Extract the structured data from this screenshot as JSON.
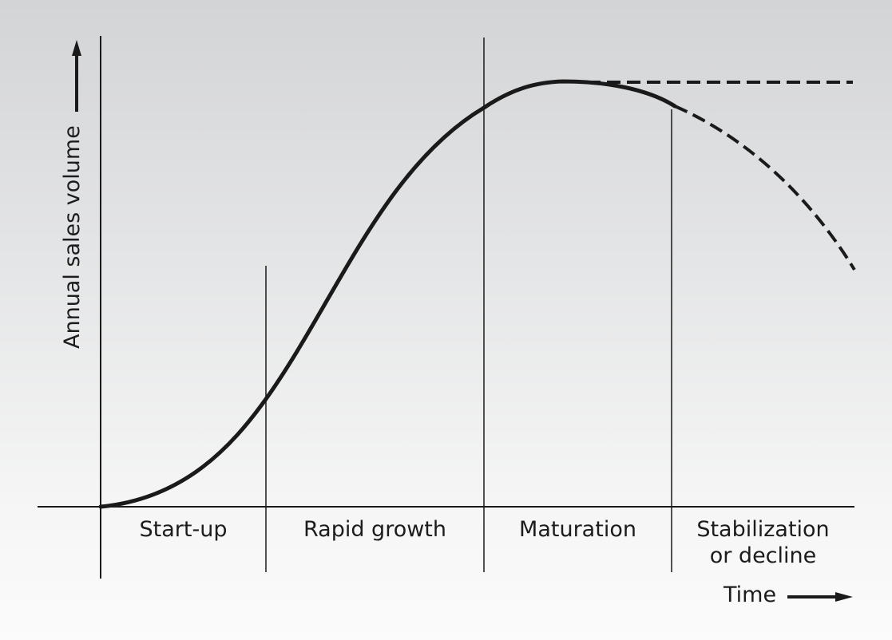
{
  "y_axis": {
    "label": "Annual sales volume"
  },
  "x_axis": {
    "label": "Time"
  },
  "stages": [
    {
      "label": "Start-up"
    },
    {
      "label": "Rapid growth"
    },
    {
      "label": "Maturation"
    },
    {
      "label_line1": "Stabilization",
      "label_line2": "or decline"
    }
  ],
  "curve": {
    "solid_style": "solid",
    "stable_branch_style": "dashed",
    "decline_branch_style": "dashed",
    "color": "#1a1a1a"
  }
}
